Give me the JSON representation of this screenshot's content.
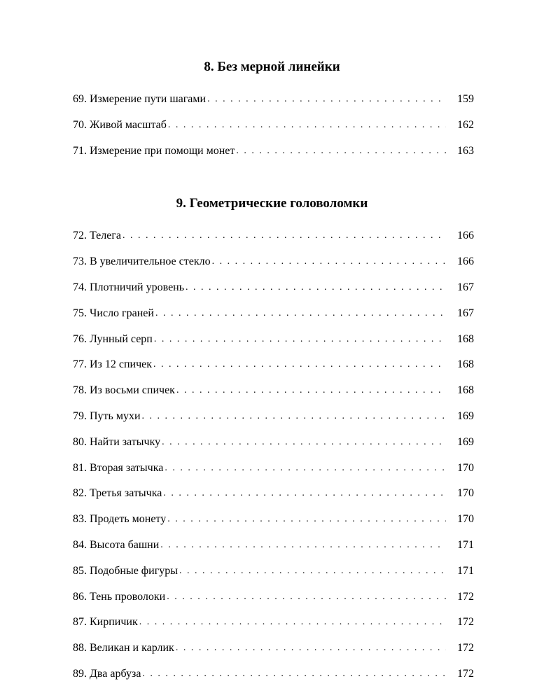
{
  "sections": [
    {
      "heading": "8. Без мерной линейки",
      "entries": [
        {
          "num": "69.",
          "title": "Измерение пути шагами",
          "page": "159"
        },
        {
          "num": "70.",
          "title": "Живой масштаб",
          "page": "162"
        },
        {
          "num": "71.",
          "title": "Измерение при помощи монет",
          "page": "163"
        }
      ]
    },
    {
      "heading": "9. Геометрические головоломки",
      "entries": [
        {
          "num": "72.",
          "title": "Телега",
          "page": "166"
        },
        {
          "num": "73.",
          "title": "В увеличительное стекло",
          "page": "166"
        },
        {
          "num": "74.",
          "title": "Плотничий уровень",
          "page": "167"
        },
        {
          "num": "75.",
          "title": "Число граней",
          "page": "167"
        },
        {
          "num": "76.",
          "title": "Лунный серп",
          "page": "168"
        },
        {
          "num": "77.",
          "title": "Из 12 спичек",
          "page": "168"
        },
        {
          "num": "78.",
          "title": "Из восьми спичек",
          "page": "168"
        },
        {
          "num": "79.",
          "title": "Путь мухи",
          "page": "169"
        },
        {
          "num": "80.",
          "title": "Найти затычку",
          "page": "169"
        },
        {
          "num": "81.",
          "title": "Вторая затычка",
          "page": "170"
        },
        {
          "num": "82.",
          "title": "Третья затычка",
          "page": "170"
        },
        {
          "num": "83.",
          "title": "Продеть монету",
          "page": "170"
        },
        {
          "num": "84.",
          "title": "Высота башни",
          "page": "171"
        },
        {
          "num": "85.",
          "title": "Подобные фигуры",
          "page": "171"
        },
        {
          "num": "86.",
          "title": "Тень проволоки",
          "page": "172"
        },
        {
          "num": "87.",
          "title": "Кирпичик",
          "page": "172"
        },
        {
          "num": "88.",
          "title": "Великан и карлик",
          "page": "172"
        },
        {
          "num": "89.",
          "title": "Два арбуза",
          "page": "172"
        }
      ]
    }
  ]
}
